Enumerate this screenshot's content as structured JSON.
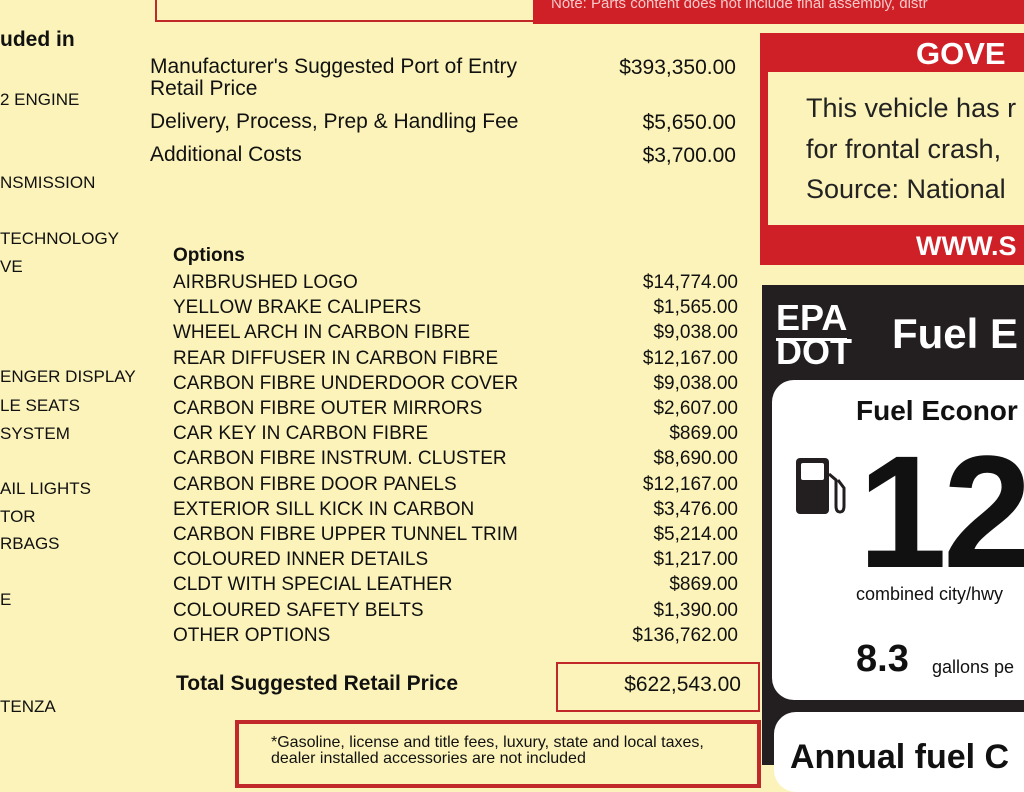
{
  "left_column": {
    "heading": "uded in",
    "items": [
      "2 ENGINE",
      "NSMISSION",
      "TECHNOLOGY",
      "VE",
      "ENGER DISPLAY",
      "LE SEATS",
      "SYSTEM",
      "AIL LIGHTS",
      "TOR",
      "RBAGS",
      "E",
      "TENZA"
    ]
  },
  "top_note": "Note: Parts content does not include final assembly, distr",
  "pricing": {
    "msrp_label_line1": "Manufacturer's Suggested Port of Entry",
    "msrp_label_line2": "Retail Price",
    "msrp_value": "$393,350.00",
    "delivery_label": "Delivery, Process, Prep & Handling Fee",
    "delivery_value": "$5,650.00",
    "additional_label": "Additional Costs",
    "additional_value": "$3,700.00"
  },
  "options": {
    "heading": "Options",
    "items": [
      {
        "label": "AIRBRUSHED LOGO",
        "price": "$14,774.00"
      },
      {
        "label": "YELLOW BRAKE CALIPERS",
        "price": "$1,565.00"
      },
      {
        "label": "WHEEL ARCH IN CARBON FIBRE",
        "price": "$9,038.00"
      },
      {
        "label": "REAR DIFFUSER IN CARBON FIBRE",
        "price": "$12,167.00"
      },
      {
        "label": "CARBON FIBRE UNDERDOOR COVER",
        "price": "$9,038.00"
      },
      {
        "label": "CARBON FIBRE OUTER MIRRORS",
        "price": "$2,607.00"
      },
      {
        "label": "CAR KEY IN CARBON FIBRE",
        "price": "$869.00"
      },
      {
        "label": "CARBON FIBRE INSTRUM. CLUSTER",
        "price": "$8,690.00"
      },
      {
        "label": "CARBON FIBRE DOOR PANELS",
        "price": "$12,167.00"
      },
      {
        "label": "EXTERIOR SILL KICK IN CARBON",
        "price": "$3,476.00"
      },
      {
        "label": "CARBON FIBRE UPPER TUNNEL TRIM",
        "price": "$5,214.00"
      },
      {
        "label": "COLOURED INNER DETAILS",
        "price": "$1,217.00"
      },
      {
        "label": "CLDT WITH SPECIAL LEATHER",
        "price": "$869.00"
      },
      {
        "label": "COLOURED SAFETY BELTS",
        "price": "$1,390.00"
      },
      {
        "label": "OTHER OPTIONS",
        "price": "$136,762.00"
      }
    ]
  },
  "total": {
    "label": "Total Suggested Retail Price",
    "value": "$622,543.00"
  },
  "footnote": {
    "line1": "*Gasoline, license and title fees, luxury, state and local taxes,",
    "line2": "dealer installed accessories are not included"
  },
  "government": {
    "header": "GOVE",
    "lines": [
      "This vehicle has r",
      "for frontal crash, ",
      "Source: National "
    ],
    "footer": "WWW.S"
  },
  "epa": {
    "logo_top": "EPA",
    "logo_bottom": "DOT",
    "title": "Fuel E",
    "subtitle": "Fuel Econor",
    "icon": "fuel-pump-icon",
    "mpg": "12",
    "combined_label": "combined city/hwy",
    "gallons": "8.3",
    "gallons_label": "gallons pe",
    "annual_label": "Annual fuel C"
  },
  "colors": {
    "paper": "#fbf3b9",
    "red": "#cf2027",
    "epa_black": "#231f20"
  }
}
